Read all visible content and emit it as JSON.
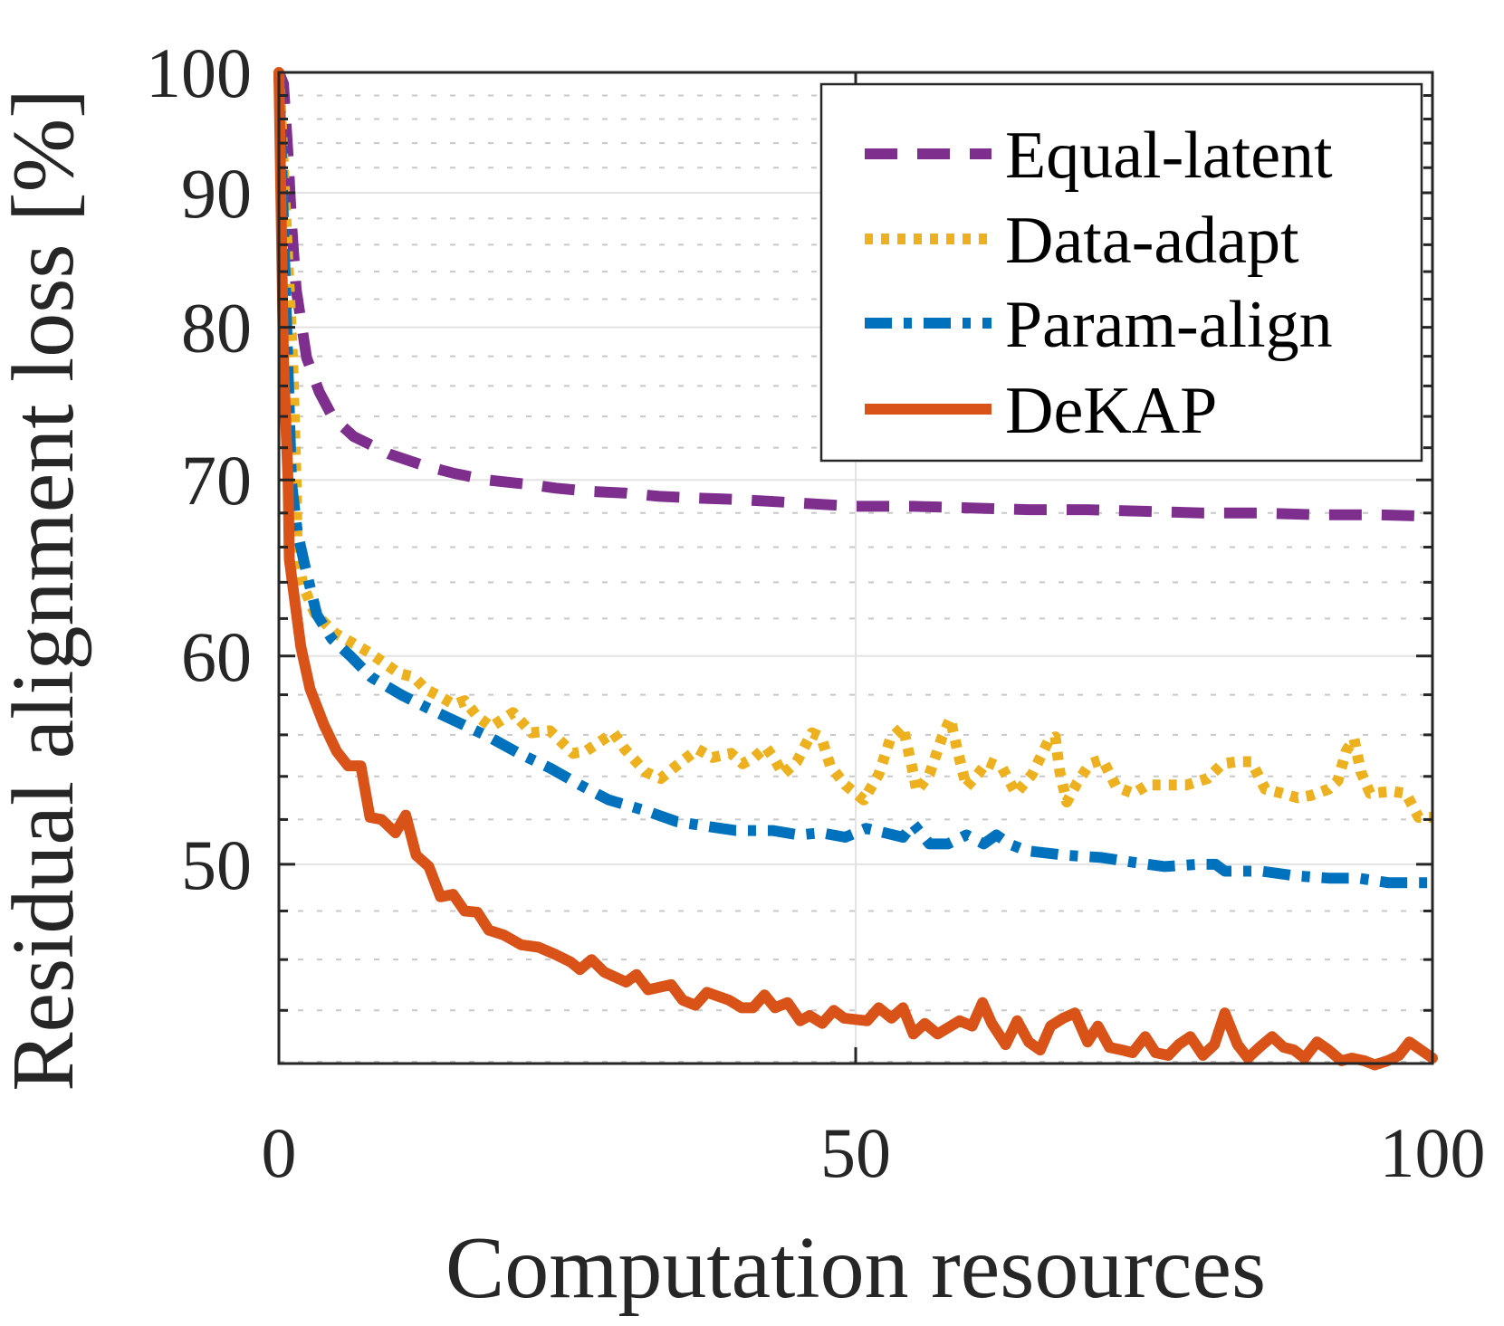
{
  "chart_data": {
    "type": "line",
    "title": "",
    "xlabel": "Computation resources",
    "ylabel": "Residual alignment loss [%]",
    "xlim": [
      0,
      100
    ],
    "ylim": [
      42,
      100
    ],
    "yscale": "log",
    "grid": true,
    "minor_grid": true,
    "x_ticks": [
      0,
      50,
      100
    ],
    "x_tick_labels": [
      "0",
      "50",
      "100"
    ],
    "y_ticks": [
      50,
      60,
      70,
      80,
      90,
      100
    ],
    "y_tick_labels": [
      "50",
      "60",
      "70",
      "80",
      "90",
      "100"
    ],
    "y_minor_ticks": [
      44,
      46,
      48,
      52,
      54,
      56,
      58,
      62,
      64,
      66,
      68,
      72,
      74,
      76,
      78,
      82,
      84,
      86,
      88,
      92,
      94,
      96,
      98
    ],
    "legend_position": "top-right",
    "series": [
      {
        "name": "Equal-latent",
        "color": "#7e2f8e",
        "style": "dashed",
        "x": [
          0,
          0.4,
          0.8,
          1.1,
          1.5,
          2.4,
          3.5,
          4.7,
          6.5,
          9.6,
          12.5,
          15.2,
          18,
          20.6,
          22,
          24,
          27,
          30,
          33,
          36,
          40,
          45,
          50,
          55,
          60,
          65,
          70,
          75,
          80,
          85,
          90,
          95,
          100
        ],
        "y": [
          100,
          99.0,
          92.9,
          87.6,
          82.7,
          77.9,
          75.6,
          73.9,
          72.7,
          71.6,
          70.9,
          70.4,
          70.0,
          69.8,
          69.7,
          69.5,
          69.3,
          69.2,
          69.0,
          68.9,
          68.8,
          68.6,
          68.4,
          68.4,
          68.3,
          68.2,
          68.2,
          68.1,
          68.0,
          68.0,
          67.9,
          67.9,
          67.8
        ]
      },
      {
        "name": "Data-adapt",
        "color": "#edb120",
        "style": "dotted",
        "x": [
          0,
          1.2,
          1.5,
          1.6,
          2.1,
          3.1,
          4.9,
          7.8,
          10.4,
          11.7,
          12.7,
          14.0,
          15.2,
          16.1,
          17.2,
          18.4,
          20.3,
          21.9,
          23.5,
          25.5,
          26.6,
          29.0,
          30.0,
          31.8,
          33.1,
          34.9,
          36.3,
          37.6,
          39.2,
          40.2,
          41.2,
          42.2,
          43.0,
          43.7,
          44.9,
          46.2,
          47.0,
          47.8,
          49.1,
          50.7,
          52.0,
          53.0,
          54.1,
          54.9,
          55.3,
          56.4,
          57.5,
          58.2,
          58.8,
          59.6,
          60.6,
          61.4,
          62.7,
          63.9,
          65.3,
          66.7,
          67.3,
          67.7,
          68.3,
          69.2,
          70.3,
          71.4,
          72.6,
          74.1,
          75.3,
          76.8,
          78.7,
          80.5,
          81.8,
          83.1,
          84.3,
          85.5,
          87.0,
          88.3,
          89.4,
          91.0,
          91.8,
          92.5,
          93.2,
          93.8,
          94.6,
          96.5,
          97.7,
          98.8,
          100
        ],
        "y": [
          100,
          77.6,
          69.8,
          65.3,
          63.8,
          62.3,
          61.2,
          60.2,
          59.1,
          58.9,
          58.3,
          57.9,
          57.5,
          57.7,
          56.9,
          56.4,
          57.1,
          56.1,
          56.2,
          55.1,
          55.2,
          56.1,
          55.3,
          54.2,
          53.9,
          54.7,
          55.3,
          54.9,
          55.1,
          54.6,
          54.9,
          55.4,
          54.8,
          54.1,
          54.7,
          56.1,
          55.9,
          54.5,
          53.6,
          52.9,
          54.1,
          55.8,
          56.4,
          54.4,
          53.3,
          54.1,
          55.9,
          56.8,
          55.3,
          53.5,
          54.1,
          54.7,
          54.4,
          53.2,
          54.1,
          55.7,
          55.9,
          54.2,
          52.8,
          53.7,
          54.6,
          54.8,
          53.5,
          53.2,
          53.6,
          53.6,
          53.6,
          53.9,
          54.6,
          54.7,
          54.7,
          53.4,
          53.2,
          53.0,
          53.1,
          53.4,
          53.8,
          55.2,
          55.8,
          54.2,
          53.2,
          53.3,
          53.2,
          52.1,
          52.1
        ]
      },
      {
        "name": "Param-align",
        "color": "#0072bd",
        "style": "dashdot",
        "x": [
          0,
          1.1,
          1.6,
          2.3,
          3.3,
          4.6,
          6.2,
          8.0,
          10.6,
          13.0,
          15.6,
          18.2,
          20.8,
          23.5,
          26.1,
          28.6,
          31.8,
          34.5,
          37.0,
          39.6,
          42.8,
          45.1,
          47.0,
          49.1,
          50.9,
          52.5,
          54.1,
          55.0,
          56.4,
          58.0,
          59.6,
          61.1,
          62.2,
          63.3,
          64.8,
          68.2,
          71.3,
          73.9,
          76.8,
          79.7,
          81.2,
          82.0,
          85.2,
          88.1,
          91.0,
          93.6,
          96.2,
          100
        ],
        "y": [
          100,
          69.8,
          66.9,
          64.8,
          62.2,
          60.9,
          60.0,
          58.9,
          58.0,
          57.3,
          56.6,
          55.9,
          55.1,
          54.4,
          53.6,
          52.9,
          52.4,
          51.9,
          51.7,
          51.5,
          51.5,
          51.3,
          51.4,
          51.2,
          51.6,
          51.4,
          51.2,
          51.8,
          50.9,
          50.9,
          51.3,
          50.9,
          51.3,
          50.9,
          50.6,
          50.4,
          50.3,
          50.1,
          49.9,
          50.0,
          50.0,
          49.7,
          49.7,
          49.5,
          49.4,
          49.4,
          49.2,
          49.2
        ]
      },
      {
        "name": "DeKAP",
        "color": "#d95319",
        "style": "solid",
        "x": [
          0,
          0.4,
          0.8,
          0.9,
          1.9,
          2.7,
          3.9,
          5.0,
          6.0,
          7.1,
          7.9,
          8.9,
          10.1,
          11.0,
          11.9,
          13.0,
          14.0,
          15.1,
          16.1,
          17.2,
          18.2,
          19.5,
          21.0,
          22.5,
          24.0,
          25.3,
          26.1,
          27.1,
          28.2,
          30.1,
          31.0,
          32.0,
          34.0,
          35.0,
          36.1,
          37.1,
          39.0,
          40.1,
          41.1,
          42.1,
          43.0,
          44.1,
          45.2,
          46.0,
          47.1,
          48.1,
          49.0,
          51.0,
          52.0,
          53.1,
          54.1,
          55.0,
          56.0,
          57.1,
          59.0,
          60.1,
          61.0,
          61.8,
          63.0,
          64.0,
          65.0,
          66.0,
          66.9,
          68.0,
          69.0,
          70.1,
          71.0,
          72.0,
          73.1,
          74.0,
          75.1,
          76.0,
          77.1,
          78.0,
          79.0,
          80.1,
          81.1,
          82.0,
          83.1,
          84.0,
          85.0,
          86.1,
          87.1,
          88.0,
          88.9,
          90.0,
          91.0,
          92.1,
          93.0,
          94.1,
          95.0,
          96.1,
          97.1,
          98.0,
          99.0,
          100
        ],
        "y": [
          100,
          77.6,
          69.8,
          65.3,
          60.5,
          58.3,
          56.5,
          55.2,
          54.5,
          54.5,
          52.1,
          52.0,
          51.4,
          52.2,
          50.4,
          49.9,
          48.6,
          48.7,
          48.0,
          47.95,
          47.2,
          47.0,
          46.6,
          46.5,
          46.2,
          45.9,
          45.6,
          46.0,
          45.5,
          45.1,
          45.4,
          44.8,
          45.0,
          44.4,
          44.2,
          44.7,
          44.4,
          44.1,
          44.1,
          44.6,
          44.1,
          44.3,
          43.6,
          43.8,
          43.5,
          44.0,
          43.7,
          43.6,
          44.1,
          43.7,
          44.1,
          43.1,
          43.5,
          43.1,
          43.6,
          43.4,
          44.3,
          43.5,
          42.7,
          43.6,
          42.8,
          42.5,
          43.4,
          43.7,
          43.9,
          42.8,
          43.4,
          42.6,
          42.5,
          42.4,
          43.0,
          42.4,
          42.3,
          42.7,
          43.0,
          42.3,
          42.7,
          43.9,
          42.7,
          42.2,
          42.6,
          43.0,
          42.6,
          42.5,
          42.2,
          42.8,
          42.5,
          42.1,
          42.2,
          42.1,
          41.95,
          42.1,
          42.3,
          42.8,
          42.5,
          42.2
        ]
      }
    ]
  }
}
